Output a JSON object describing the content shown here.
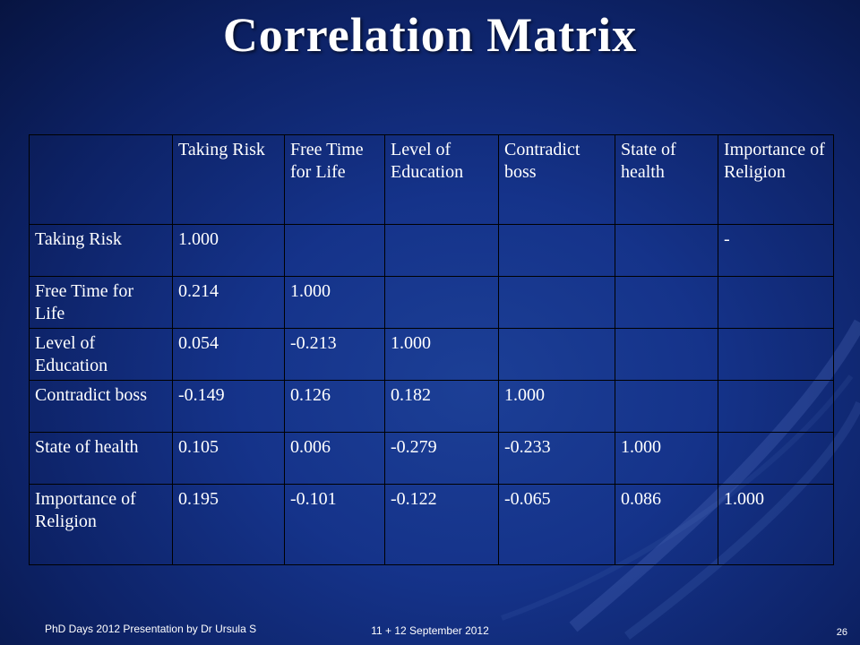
{
  "slide": {
    "title": "Correlation Matrix",
    "footer_left": "PhD Days  2012 Presentation by  Dr Ursula S",
    "footer_date": "11 + 12 September 2012",
    "page_number": "26"
  },
  "table": {
    "headers": [
      "",
      "Taking Risk",
      "Free Time for Life",
      "Level of Education",
      "Contradict boss",
      "State of health",
      "Importance of Religion"
    ],
    "rows": [
      {
        "label": "Taking Risk",
        "cells": [
          "1.000",
          "",
          "",
          "",
          "",
          "-"
        ]
      },
      {
        "label": "Free Time for Life",
        "cells": [
          "0.214",
          "1.000",
          "",
          "",
          "",
          ""
        ]
      },
      {
        "label": "Level of Education",
        "cells": [
          "0.054",
          "-0.213",
          "1.000",
          "",
          "",
          ""
        ]
      },
      {
        "label": "Contradict boss",
        "cells": [
          "-0.149",
          "0.126",
          "0.182",
          "1.000",
          "",
          ""
        ]
      },
      {
        "label": "State of health",
        "cells": [
          "0.105",
          "0.006",
          "-0.279",
          "-0.233",
          "1.000",
          ""
        ]
      },
      {
        "label": "Importance of Religion",
        "cells": [
          "0.195",
          "-0.101",
          "-0.122",
          "-0.065",
          "0.086",
          "1.000"
        ]
      }
    ]
  },
  "colors": {
    "background": "#15338a",
    "text": "#ffffff",
    "highlight": "#ff2a2a",
    "grid": "#000000"
  }
}
